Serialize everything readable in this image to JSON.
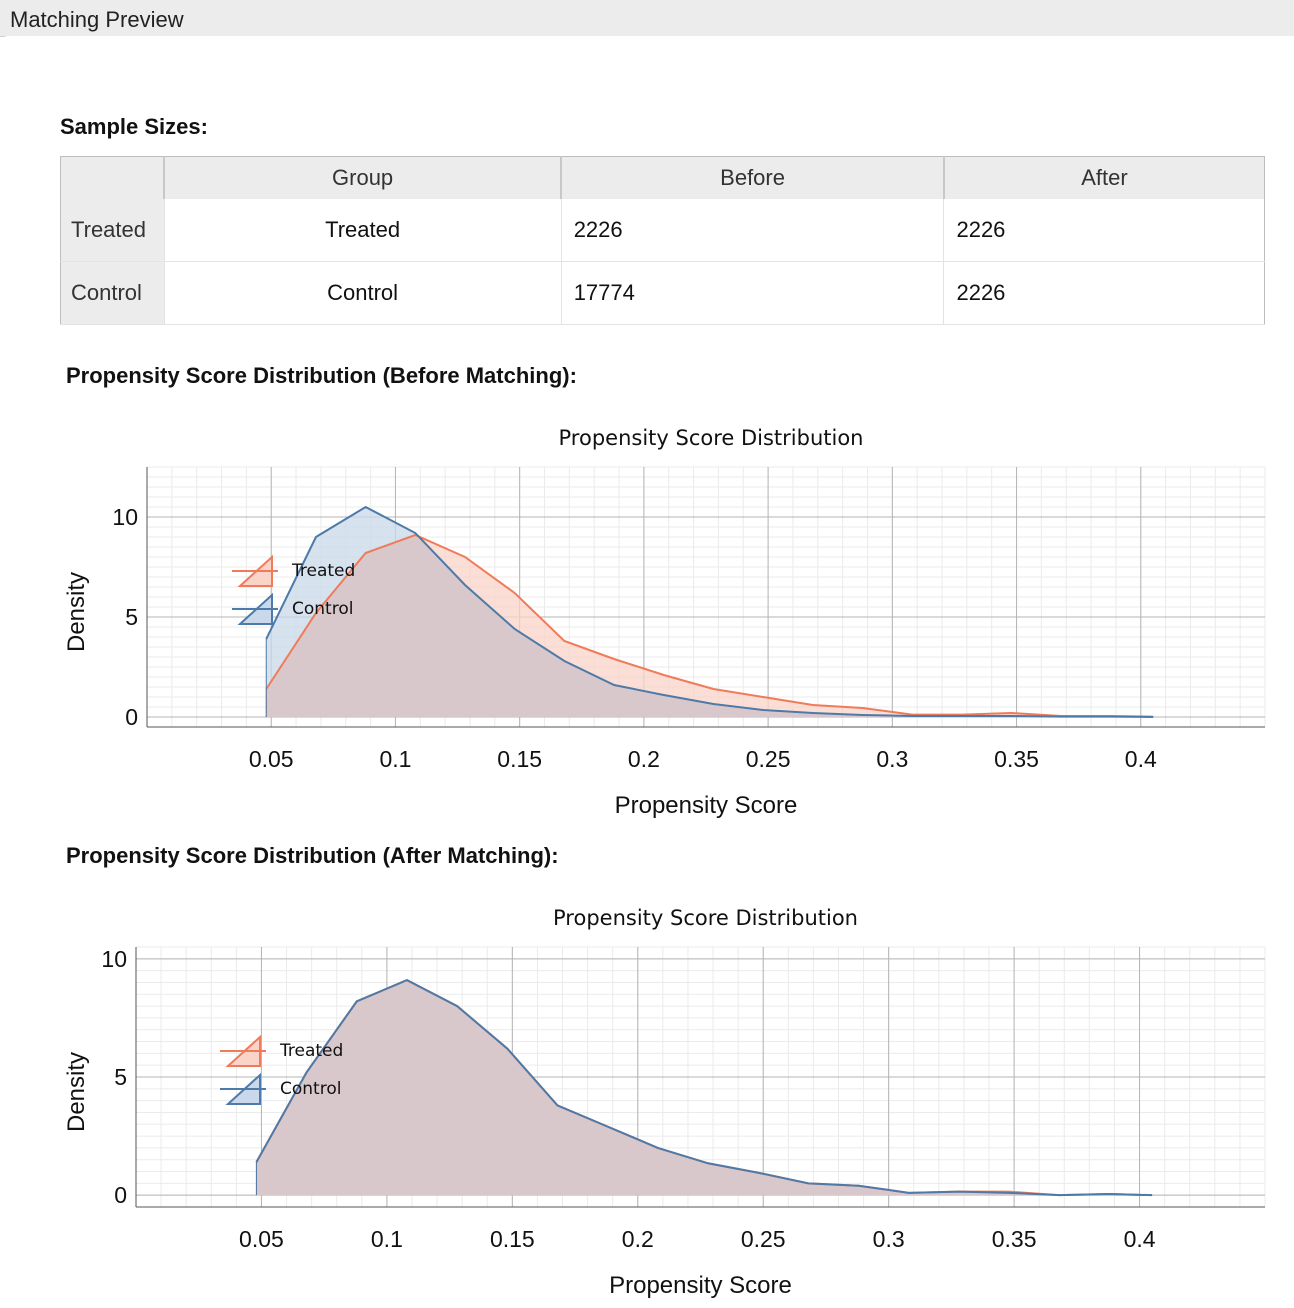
{
  "window": {
    "title": "Matching Preview"
  },
  "sample_sizes": {
    "title": "Sample Sizes:",
    "columns": [
      "Group",
      "Before",
      "After"
    ],
    "rows": [
      {
        "header": "Treated",
        "group": "Treated",
        "before": "2226",
        "after": "2226"
      },
      {
        "header": "Control",
        "group": "Control",
        "before": "17774",
        "after": "2226"
      }
    ]
  },
  "before": {
    "section_title": "Propensity Score Distribution (Before Matching):"
  },
  "after": {
    "section_title": "Propensity Score Distribution (After Matching):"
  },
  "colors": {
    "treated": "#f07b5a",
    "control": "#4d7aa8",
    "treated_fill": "#fad4c8",
    "control_fill": "#c9d8ea",
    "overlap_fill": "#d9c8cb"
  },
  "chart_data": [
    {
      "type": "area",
      "title": "Propensity Score Distribution",
      "xlabel": "Propensity Score",
      "ylabel": "Density",
      "xlim": [
        0.0,
        0.45
      ],
      "ylim": [
        -0.5,
        12.5
      ],
      "xticks": [
        "0.05",
        "0.1",
        "0.15",
        "0.2",
        "0.25",
        "0.3",
        "0.35",
        "0.4"
      ],
      "yticks": [
        "0",
        "5",
        "10"
      ],
      "grid": true,
      "legend_position": "upper-left",
      "x": [
        0.048,
        0.068,
        0.088,
        0.108,
        0.128,
        0.148,
        0.168,
        0.188,
        0.208,
        0.228,
        0.248,
        0.268,
        0.288,
        0.308,
        0.328,
        0.348,
        0.368,
        0.388,
        0.405
      ],
      "series": [
        {
          "name": "Treated",
          "values": [
            1.4,
            5.2,
            8.2,
            9.1,
            8.0,
            6.2,
            3.8,
            2.9,
            2.1,
            1.4,
            1.0,
            0.6,
            0.45,
            0.12,
            0.12,
            0.2,
            0.05,
            0.05,
            0.02
          ]
        },
        {
          "name": "Control",
          "values": [
            3.9,
            9.0,
            10.5,
            9.2,
            6.6,
            4.4,
            2.8,
            1.6,
            1.1,
            0.65,
            0.35,
            0.2,
            0.1,
            0.05,
            0.05,
            0.05,
            0.02,
            0.02,
            0.0
          ]
        }
      ]
    },
    {
      "type": "area",
      "title": "Propensity Score Distribution",
      "xlabel": "Propensity Score",
      "ylabel": "Density",
      "xlim": [
        0.0,
        0.45
      ],
      "ylim": [
        -0.5,
        10.5
      ],
      "xticks": [
        "0.05",
        "0.1",
        "0.15",
        "0.2",
        "0.25",
        "0.3",
        "0.35",
        "0.4"
      ],
      "yticks": [
        "0",
        "5",
        "10"
      ],
      "grid": true,
      "legend_position": "upper-left",
      "x": [
        0.048,
        0.068,
        0.088,
        0.108,
        0.128,
        0.148,
        0.168,
        0.188,
        0.208,
        0.228,
        0.248,
        0.268,
        0.288,
        0.308,
        0.328,
        0.348,
        0.368,
        0.388,
        0.405
      ],
      "series": [
        {
          "name": "Treated",
          "values": [
            1.4,
            5.2,
            8.2,
            9.1,
            8.0,
            6.2,
            3.8,
            2.9,
            2.0,
            1.35,
            0.95,
            0.5,
            0.4,
            0.1,
            0.15,
            0.15,
            0.0,
            0.05,
            0.0
          ]
        },
        {
          "name": "Control",
          "values": [
            1.4,
            5.2,
            8.2,
            9.1,
            8.0,
            6.2,
            3.8,
            2.9,
            2.0,
            1.35,
            0.95,
            0.5,
            0.4,
            0.1,
            0.15,
            0.1,
            0.0,
            0.05,
            0.0
          ]
        }
      ]
    }
  ]
}
